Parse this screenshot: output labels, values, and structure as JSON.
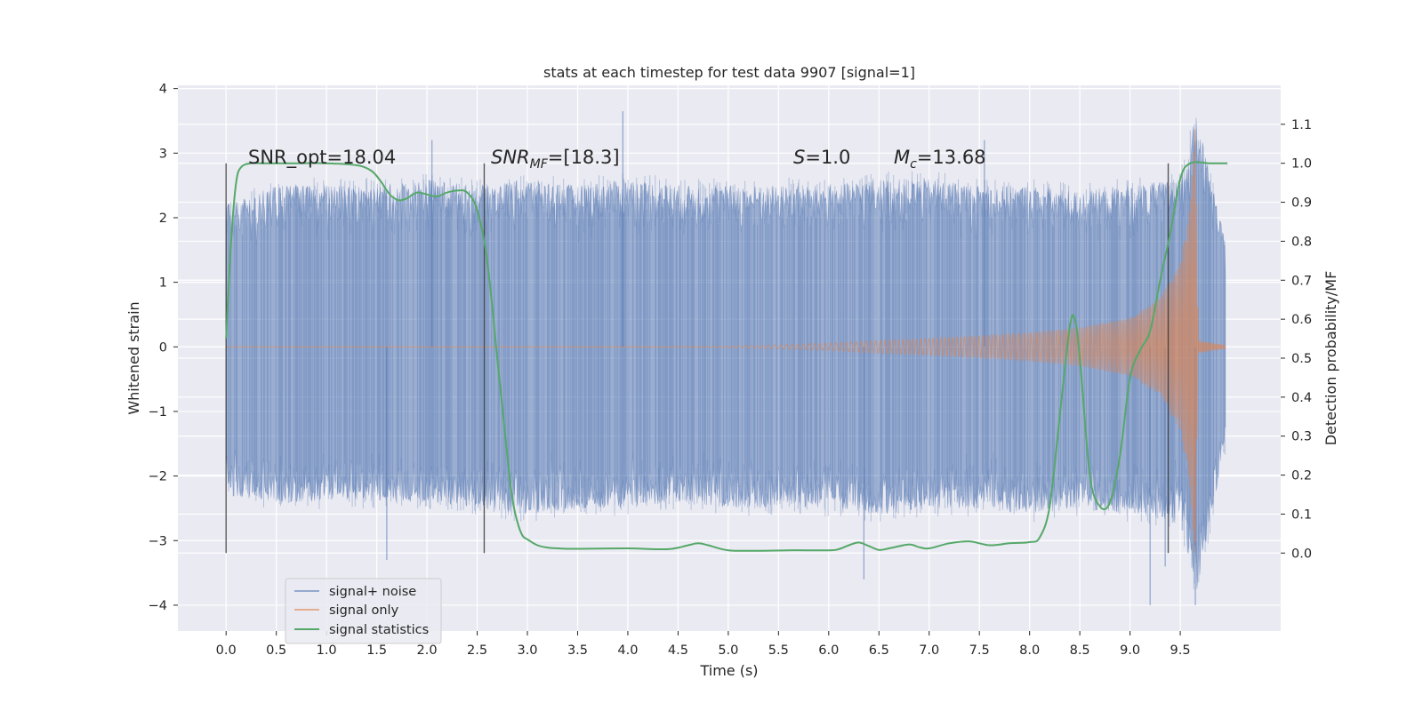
{
  "chart_data": {
    "type": "line",
    "title": "stats at each timestep for test data 9907 [signal=1]",
    "xlabel": "Time (s)",
    "ylabel": "Whitened strain",
    "ylabel_right": "Detection probability/MF",
    "xlim": [
      -0.48,
      10.5
    ],
    "ylim": [
      -4.4,
      4.05
    ],
    "ylim_right": [
      -0.2,
      1.2
    ],
    "x_ticks": [
      "0.0",
      "0.5",
      "1.0",
      "1.5",
      "2.0",
      "2.5",
      "3.0",
      "3.5",
      "4.0",
      "4.5",
      "5.0",
      "5.5",
      "6.0",
      "6.5",
      "7.0",
      "7.5",
      "8.0",
      "8.5",
      "9.0",
      "9.5"
    ],
    "y_ticks": [
      "−4",
      "−3",
      "−2",
      "−1",
      "0",
      "1",
      "2",
      "3",
      "4"
    ],
    "y_ticks_right": [
      "0.0",
      "0.1",
      "0.2",
      "0.3",
      "0.4",
      "0.5",
      "0.6",
      "0.7",
      "0.8",
      "0.9",
      "1.0",
      "1.1"
    ],
    "grid": true,
    "legend_position": "lower-left",
    "annotations": {
      "snr_opt": "SNR_opt=18.04",
      "snr_mf_sym": "SNR",
      "snr_mf_sub": "MF",
      "snr_mf_val": "=[18.3]",
      "s_sym": "S",
      "s_val": "=1.0",
      "mc_sym": "M",
      "mc_sub": "c",
      "mc_val": "=13.68"
    },
    "vlines": [
      0.0,
      2.57,
      9.38
    ],
    "series": [
      {
        "name": "signal+ noise",
        "color": "#4c72b0",
        "description": "whitened strain data (noise + injected signal), 0–10 s",
        "envelope_upper": [
          [
            0.0,
            2.2
          ],
          [
            0.5,
            2.5
          ],
          [
            1.0,
            2.5
          ],
          [
            1.5,
            2.5
          ],
          [
            2.0,
            2.6
          ],
          [
            2.5,
            2.5
          ],
          [
            3.0,
            2.6
          ],
          [
            3.5,
            2.5
          ],
          [
            4.0,
            2.6
          ],
          [
            4.5,
            2.5
          ],
          [
            5.0,
            2.5
          ],
          [
            5.5,
            2.5
          ],
          [
            6.0,
            2.5
          ],
          [
            6.5,
            2.6
          ],
          [
            7.0,
            2.6
          ],
          [
            7.5,
            2.5
          ],
          [
            8.0,
            2.5
          ],
          [
            8.5,
            2.4
          ],
          [
            9.0,
            2.5
          ],
          [
            9.5,
            2.6
          ],
          [
            9.66,
            3.6
          ],
          [
            9.95,
            1.6
          ]
        ],
        "envelope_lower": [
          [
            0.0,
            -2.3
          ],
          [
            0.5,
            -2.4
          ],
          [
            1.0,
            -2.4
          ],
          [
            1.5,
            -2.4
          ],
          [
            2.0,
            -2.4
          ],
          [
            2.5,
            -2.5
          ],
          [
            3.0,
            -2.6
          ],
          [
            3.5,
            -2.5
          ],
          [
            4.0,
            -2.5
          ],
          [
            4.5,
            -2.4
          ],
          [
            5.0,
            -2.5
          ],
          [
            5.5,
            -2.5
          ],
          [
            6.0,
            -2.5
          ],
          [
            6.5,
            -2.6
          ],
          [
            7.0,
            -2.5
          ],
          [
            7.5,
            -2.5
          ],
          [
            8.0,
            -2.6
          ],
          [
            8.5,
            -2.5
          ],
          [
            9.0,
            -2.6
          ],
          [
            9.5,
            -2.7
          ],
          [
            9.66,
            -3.8
          ],
          [
            9.95,
            -1.6
          ]
        ],
        "outliers": [
          [
            1.6,
            -3.3
          ],
          [
            2.05,
            3.2
          ],
          [
            3.95,
            3.65
          ],
          [
            6.35,
            -3.6
          ],
          [
            7.55,
            3.2
          ],
          [
            9.2,
            -4.0
          ],
          [
            9.35,
            -3.4
          ],
          [
            9.65,
            -4.0
          ]
        ]
      },
      {
        "name": "signal only",
        "color": "#dd8452",
        "description": "chirp signal amplitude envelope",
        "envelope": [
          [
            0.0,
            0.0
          ],
          [
            5.0,
            0.01
          ],
          [
            5.5,
            0.03
          ],
          [
            6.0,
            0.06
          ],
          [
            6.5,
            0.1
          ],
          [
            7.0,
            0.13
          ],
          [
            7.5,
            0.17
          ],
          [
            8.0,
            0.22
          ],
          [
            8.5,
            0.3
          ],
          [
            9.0,
            0.45
          ],
          [
            9.3,
            0.75
          ],
          [
            9.5,
            1.3
          ],
          [
            9.6,
            2.2
          ],
          [
            9.65,
            3.45
          ],
          [
            9.68,
            0.1
          ],
          [
            9.95,
            0.02
          ]
        ],
        "chirp_period_start": 0.08,
        "chirp_period_end": 0.014
      },
      {
        "name": "signal statistics",
        "color": "#55a868",
        "description": "detection probability (right axis)",
        "x": [
          0.0,
          0.05,
          0.1,
          0.15,
          0.25,
          0.35,
          0.5,
          0.7,
          1.0,
          1.3,
          1.45,
          1.55,
          1.6,
          1.65,
          1.72,
          1.8,
          1.9,
          2.0,
          2.1,
          2.2,
          2.3,
          2.4,
          2.5,
          2.6,
          2.7,
          2.8,
          2.85,
          2.9,
          2.95,
          3.0,
          3.1,
          3.2,
          3.3,
          3.4,
          3.5,
          4.0,
          4.4,
          4.6,
          4.7,
          4.8,
          5.0,
          5.3,
          5.6,
          6.0,
          6.1,
          6.2,
          6.3,
          6.4,
          6.5,
          6.6,
          6.8,
          6.9,
          7.0,
          7.2,
          7.4,
          7.6,
          7.8,
          8.0,
          8.1,
          8.2,
          8.3,
          8.4,
          8.45,
          8.5,
          8.6,
          8.7,
          8.8,
          8.9,
          9.0,
          9.1,
          9.2,
          9.3,
          9.4,
          9.5,
          9.6,
          9.8,
          9.97
        ],
        "y": [
          0.55,
          0.8,
          0.95,
          0.99,
          1.0,
          1.0,
          1.0,
          1.0,
          1.0,
          0.995,
          0.98,
          0.95,
          0.93,
          0.915,
          0.905,
          0.91,
          0.925,
          0.92,
          0.915,
          0.925,
          0.93,
          0.925,
          0.88,
          0.75,
          0.5,
          0.25,
          0.14,
          0.08,
          0.045,
          0.035,
          0.02,
          0.014,
          0.012,
          0.011,
          0.011,
          0.012,
          0.01,
          0.02,
          0.025,
          0.02,
          0.007,
          0.006,
          0.007,
          0.007,
          0.01,
          0.02,
          0.027,
          0.018,
          0.008,
          0.012,
          0.022,
          0.015,
          0.012,
          0.025,
          0.03,
          0.02,
          0.025,
          0.028,
          0.04,
          0.12,
          0.35,
          0.58,
          0.6,
          0.5,
          0.2,
          0.12,
          0.13,
          0.25,
          0.45,
          0.52,
          0.57,
          0.7,
          0.82,
          0.96,
          1.0,
          1.0,
          1.0
        ]
      }
    ]
  }
}
